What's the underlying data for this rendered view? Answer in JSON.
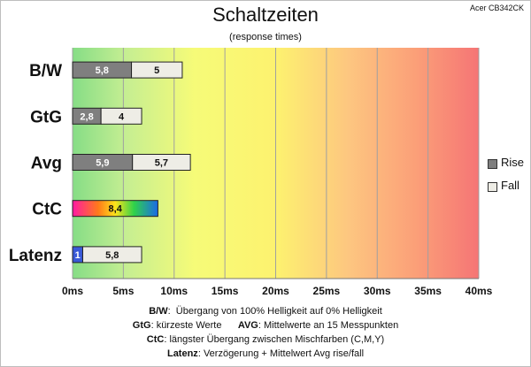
{
  "header": {
    "title": "Schaltzeiten",
    "subtitle": "(response times)",
    "model": "Acer CB342CK"
  },
  "colors": {
    "rise": "#7f7f7f",
    "fall": "#eeede6",
    "grid": "#a0a0a0",
    "latency_rise": "#3a5ad8"
  },
  "chart_data": {
    "type": "bar",
    "orientation": "horizontal",
    "stacked": true,
    "title": "Schaltzeiten",
    "subtitle": "(response times)",
    "categories": [
      "B/W",
      "GtG",
      "Avg",
      "CtC",
      "Latenz"
    ],
    "series": [
      {
        "name": "Rise",
        "values": [
          5.8,
          2.8,
          5.9,
          8.4,
          1
        ]
      },
      {
        "name": "Fall",
        "values": [
          5,
          4,
          5.7,
          null,
          5.8
        ]
      }
    ],
    "value_labels": {
      "Rise": [
        "5,8",
        "2,8",
        "5,9",
        "8,4",
        "1"
      ],
      "Fall": [
        "5",
        "4",
        "5,7",
        "",
        "5,8"
      ]
    },
    "xlim": [
      0,
      40
    ],
    "xticks": [
      "0ms",
      "5ms",
      "10ms",
      "15ms",
      "20ms",
      "25ms",
      "30ms",
      "35ms",
      "40ms"
    ],
    "xtick_values": [
      0,
      5,
      10,
      15,
      20,
      25,
      30,
      35,
      40
    ],
    "grid": true,
    "background": "gradient green-yellow-red",
    "legend": [
      "Rise",
      "Fall"
    ],
    "legend_position": "right"
  },
  "notes": [
    {
      "key": "B/W",
      "text": "Übergang von 100% Helligkeit auf 0% Helligkeit"
    },
    {
      "key": "GtG",
      "text": "kürzeste Werte",
      "key2": "AVG",
      "text2": "Mittelwerte an 15 Messpunkten"
    },
    {
      "key": "CtC",
      "text": "längster Übergang zwischen Mischfarben (C,M,Y)"
    },
    {
      "key": "Latenz",
      "text": "Verzögerung + Mittelwert Avg rise/fall"
    }
  ]
}
